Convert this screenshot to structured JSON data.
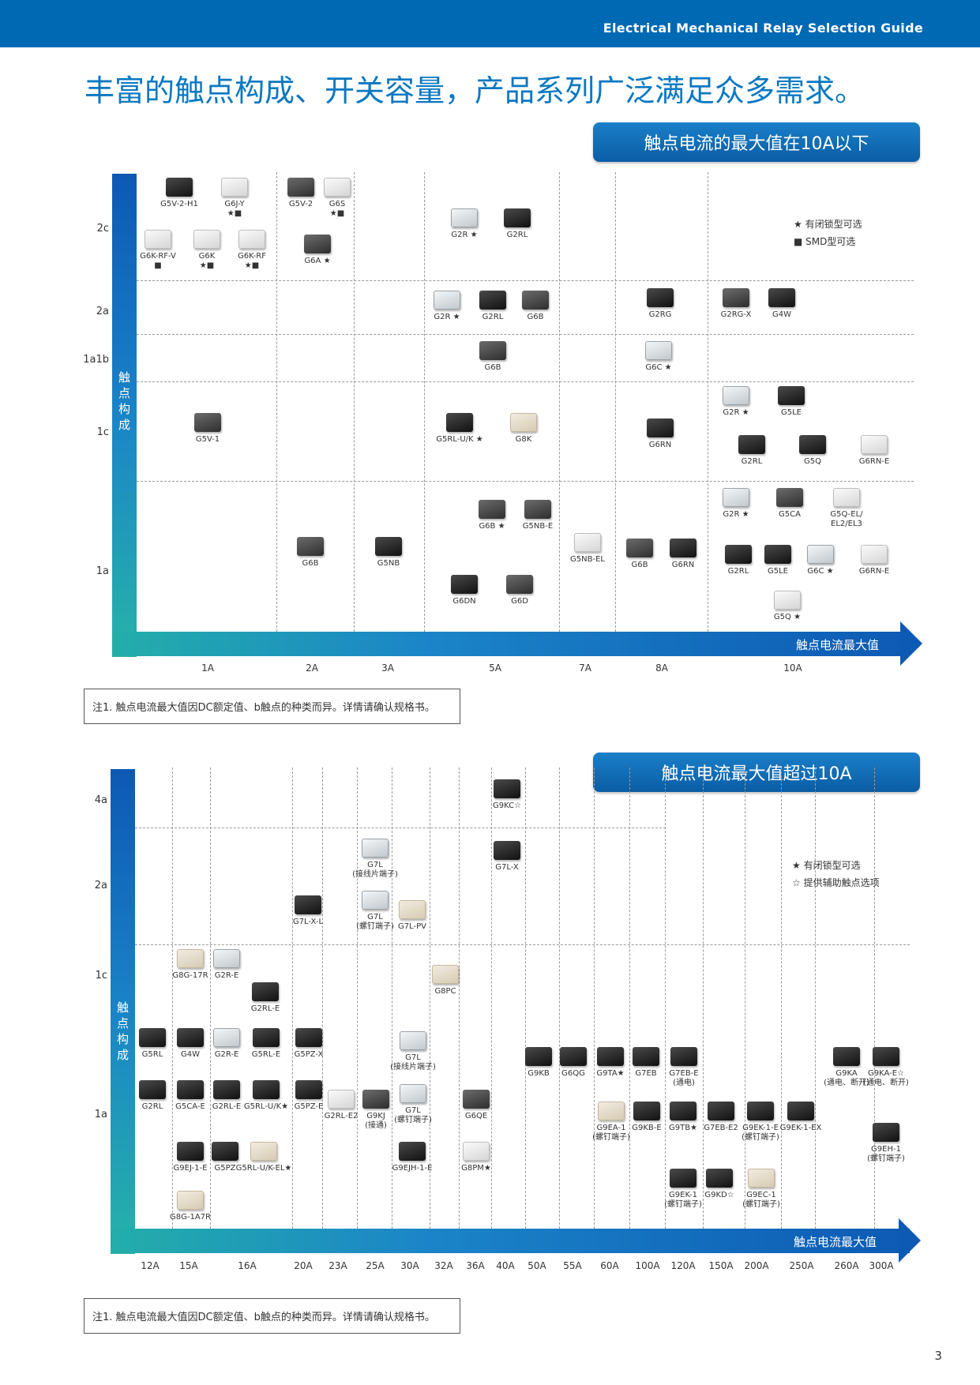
{
  "header": {
    "title": "Electrical Mechanical Relay Selection Guide"
  },
  "heading": "丰富的触点构成、开关容量，产品系列广泛满足众多需求。",
  "section1": {
    "badge": "触点电流的最大值在10A以下",
    "y_title": "触点构成",
    "x_title": "触点电流最大值",
    "rows": [
      "2c",
      "2a",
      "1a1b",
      "1c",
      "1a"
    ],
    "cols": [
      "1A",
      "2A",
      "3A",
      "5A",
      "7A",
      "8A",
      "10A"
    ],
    "legend": [
      "★ 有闭锁型可选",
      "■ SMD型可选"
    ],
    "products": [
      {
        "name": "G5V-2-H1",
        "color": "dark"
      },
      {
        "name": "G6J-Y",
        "sub": "★■",
        "color": "white"
      },
      {
        "name": "G6K-RF-V",
        "sub": "■",
        "color": "white"
      },
      {
        "name": "G6K",
        "sub": "★■",
        "color": "white"
      },
      {
        "name": "G6K-RF",
        "sub": "★■",
        "color": "white"
      },
      {
        "name": "G5V-2",
        "color": "grey"
      },
      {
        "name": "G6S",
        "sub": "★■",
        "color": "white"
      },
      {
        "name": "G6A ★",
        "color": "grey"
      },
      {
        "name": "G2R ★",
        "color": "clear"
      },
      {
        "name": "G2RL",
        "color": "dark"
      },
      {
        "name": "G2R ★",
        "color": "clear"
      },
      {
        "name": "G2RL",
        "color": "dark"
      },
      {
        "name": "G6B",
        "color": "grey"
      },
      {
        "name": "G2RG",
        "color": "dark"
      },
      {
        "name": "G2RG-X",
        "color": "grey"
      },
      {
        "name": "G4W",
        "color": "dark"
      },
      {
        "name": "G6B",
        "color": "grey"
      },
      {
        "name": "G6C ★",
        "color": "clear"
      },
      {
        "name": "G5V-1",
        "color": "grey"
      },
      {
        "name": "G5RL-U/K ★",
        "color": "dark"
      },
      {
        "name": "G8K",
        "color": "beige"
      },
      {
        "name": "G6RN",
        "color": "dark"
      },
      {
        "name": "G2R ★",
        "color": "clear"
      },
      {
        "name": "G5LE",
        "color": "dark"
      },
      {
        "name": "G2RL",
        "color": "dark"
      },
      {
        "name": "G5Q",
        "color": "dark"
      },
      {
        "name": "G6RN-E",
        "color": "white"
      },
      {
        "name": "G6B",
        "color": "grey"
      },
      {
        "name": "G5NB",
        "color": "dark"
      },
      {
        "name": "G6B ★",
        "color": "grey"
      },
      {
        "name": "G5NB-E",
        "color": "grey"
      },
      {
        "name": "G5NB-EL",
        "color": "white"
      },
      {
        "name": "G6DN",
        "color": "dark"
      },
      {
        "name": "G6D",
        "color": "grey"
      },
      {
        "name": "G6B",
        "color": "grey"
      },
      {
        "name": "G6RN",
        "color": "dark"
      },
      {
        "name": "G2R ★",
        "color": "clear"
      },
      {
        "name": "G5CA",
        "color": "grey"
      },
      {
        "name": "G5Q-EL/\nEL2/EL3",
        "color": "white"
      },
      {
        "name": "G2RL",
        "color": "dark"
      },
      {
        "name": "G5LE",
        "color": "dark"
      },
      {
        "name": "G6C ★",
        "color": "clear"
      },
      {
        "name": "G6RN-E",
        "color": "white"
      },
      {
        "name": "G5Q ★",
        "color": "white"
      }
    ],
    "note": "注1. 触点电流最大值因DC额定值、b触点的种类而异。详情请确认规格书。"
  },
  "section2": {
    "badge": "触点电流最大值超过10A",
    "y_title": "触点构成",
    "x_title": "触点电流最大值",
    "rows": [
      "4a",
      "2a",
      "1c",
      "1a"
    ],
    "cols": [
      "12A",
      "15A",
      "16A",
      "20A",
      "23A",
      "25A",
      "30A",
      "32A",
      "36A",
      "40A",
      "50A",
      "55A",
      "60A",
      "100A",
      "120A",
      "150A",
      "200A",
      "250A",
      "260A",
      "300A"
    ],
    "legend": [
      "★ 有闭锁型可选",
      "☆ 提供辅助触点选项"
    ],
    "products": [
      {
        "name": "G9KC☆",
        "color": "dark"
      },
      {
        "name": "G7L\n(接线片端子)",
        "color": "clear"
      },
      {
        "name": "G7L-X",
        "color": "dark"
      },
      {
        "name": "G7L-X-L",
        "color": "dark"
      },
      {
        "name": "G7L\n(螺钉端子)",
        "color": "clear"
      },
      {
        "name": "G7L-PV",
        "color": "beige"
      },
      {
        "name": "G8G-17R",
        "color": "beige"
      },
      {
        "name": "G2R-E",
        "color": "clear"
      },
      {
        "name": "G2RL-E",
        "color": "dark"
      },
      {
        "name": "G8PC",
        "color": "beige"
      },
      {
        "name": "G5RL",
        "color": "dark"
      },
      {
        "name": "G4W",
        "color": "dark"
      },
      {
        "name": "G2R-E",
        "color": "clear"
      },
      {
        "name": "G5RL-E",
        "color": "dark"
      },
      {
        "name": "G5PZ-X",
        "color": "dark"
      },
      {
        "name": "G7L\n(接线片端子)",
        "color": "clear"
      },
      {
        "name": "G9KB",
        "color": "dark"
      },
      {
        "name": "G6QG",
        "color": "dark"
      },
      {
        "name": "G9TA★",
        "color": "dark"
      },
      {
        "name": "G7EB",
        "color": "dark"
      },
      {
        "name": "G7EB-E\n(通电)",
        "color": "dark"
      },
      {
        "name": "G9KA\n(通电、断开)",
        "color": "dark"
      },
      {
        "name": "G9KA-E☆\n(通电、断开)",
        "color": "dark"
      },
      {
        "name": "G2RL",
        "color": "dark"
      },
      {
        "name": "G5CA-E",
        "color": "dark"
      },
      {
        "name": "G2RL-E",
        "color": "dark"
      },
      {
        "name": "G5RL-U/K★",
        "color": "dark"
      },
      {
        "name": "G5PZ-E",
        "color": "dark"
      },
      {
        "name": "G2RL-E2",
        "color": "white"
      },
      {
        "name": "G9KJ\n(接通)",
        "color": "grey"
      },
      {
        "name": "G7L\n(螺钉端子)",
        "color": "clear"
      },
      {
        "name": "G6QE",
        "color": "grey"
      },
      {
        "name": "G9EA-1\n(螺钉端子)",
        "color": "beige"
      },
      {
        "name": "G9KB-E",
        "color": "dark"
      },
      {
        "name": "G9TB★",
        "color": "dark"
      },
      {
        "name": "G7EB-E2",
        "color": "dark"
      },
      {
        "name": "G9EK-1-E\n(螺钉端子)",
        "color": "dark"
      },
      {
        "name": "G9EK-1-EX",
        "color": "dark"
      },
      {
        "name": "G9EH-1\n(螺钉端子)",
        "color": "dark"
      },
      {
        "name": "G9EJ-1-E",
        "color": "dark"
      },
      {
        "name": "G5PZ",
        "color": "dark"
      },
      {
        "name": "G5RL-U/K-EL★",
        "color": "beige"
      },
      {
        "name": "G9EJH-1-E",
        "color": "dark"
      },
      {
        "name": "G8PM★",
        "color": "white"
      },
      {
        "name": "G9EK-1\n(螺钉端子)",
        "color": "dark"
      },
      {
        "name": "G9KD☆",
        "color": "dark"
      },
      {
        "name": "G9EC-1\n(螺钉端子)",
        "color": "beige"
      },
      {
        "name": "G8G-1A7R",
        "color": "beige"
      }
    ],
    "note": "注1. 触点电流最大值因DC额定值、b触点的种类而异。详情请确认规格书。"
  },
  "page_number": "3"
}
